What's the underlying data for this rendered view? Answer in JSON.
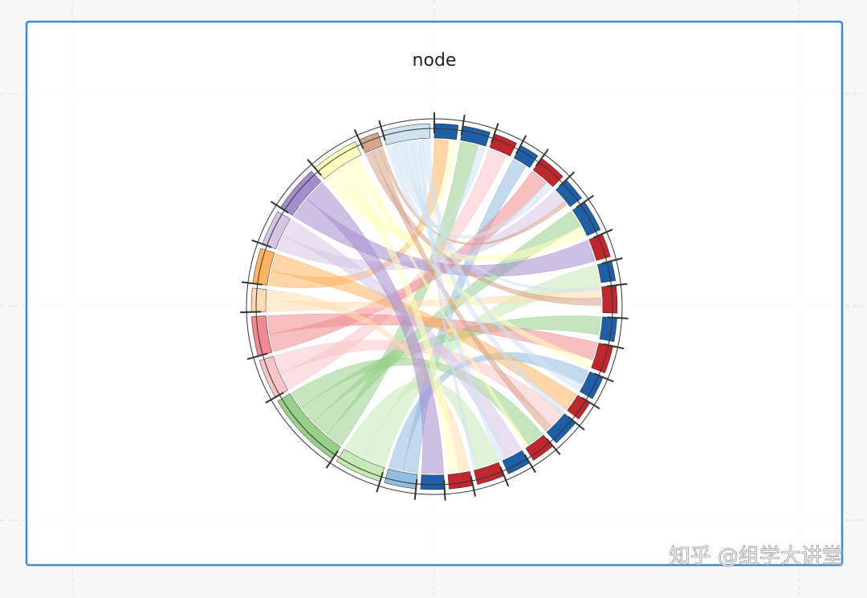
{
  "chart_data": {
    "type": "chord",
    "title": "node",
    "watermark": "知乎 @组学大讲堂",
    "nodes": [
      {
        "color": "#1f5fa6",
        "value": 6
      },
      {
        "color": "#1f5fa6",
        "value": 7
      },
      {
        "color": "#c0272d",
        "value": 6
      },
      {
        "color": "#1f5fa6",
        "value": 5
      },
      {
        "color": "#c0272d",
        "value": 7
      },
      {
        "color": "#1f5fa6",
        "value": 6
      },
      {
        "color": "#1f5fa6",
        "value": 8
      },
      {
        "color": "#c0272d",
        "value": 6
      },
      {
        "color": "#1f5fa6",
        "value": 5
      },
      {
        "color": "#c0272d",
        "value": 7
      },
      {
        "color": "#1f5fa6",
        "value": 6
      },
      {
        "color": "#c0272d",
        "value": 7
      },
      {
        "color": "#1f5fa6",
        "value": 6
      },
      {
        "color": "#c0272d",
        "value": 5
      },
      {
        "color": "#1f5fa6",
        "value": 7
      },
      {
        "color": "#c0272d",
        "value": 6
      },
      {
        "color": "#1f5fa6",
        "value": 6
      },
      {
        "color": "#c0272d",
        "value": 7
      },
      {
        "color": "#c0272d",
        "value": 6
      },
      {
        "color": "#1f5fa6",
        "value": 6
      },
      {
        "color": "#92bce0",
        "value": 8
      },
      {
        "color": "#c7e9b4",
        "value": 12
      },
      {
        "color": "#98d08a",
        "value": 20
      },
      {
        "color": "#f7c5c8",
        "value": 10
      },
      {
        "color": "#f08a90",
        "value": 10
      },
      {
        "color": "#ffdcb0",
        "value": 6
      },
      {
        "color": "#fdb462",
        "value": 9
      },
      {
        "color": "#d5c5e5",
        "value": 9
      },
      {
        "color": "#a58ccd",
        "value": 12
      },
      {
        "color": "#ffffbf",
        "value": 12
      },
      {
        "color": "#d6a488",
        "value": 5
      },
      {
        "color": "#cfe2f0",
        "value": 12
      }
    ],
    "links": [
      {
        "source": 20,
        "target": 3,
        "value": 4
      },
      {
        "source": 20,
        "target": 12,
        "value": 4
      },
      {
        "source": 21,
        "target": 8,
        "value": 6
      },
      {
        "source": 21,
        "target": 17,
        "value": 6
      },
      {
        "source": 22,
        "target": 1,
        "value": 5
      },
      {
        "source": 22,
        "target": 6,
        "value": 5
      },
      {
        "source": 22,
        "target": 10,
        "value": 5
      },
      {
        "source": 22,
        "target": 15,
        "value": 5
      },
      {
        "source": 23,
        "target": 2,
        "value": 5
      },
      {
        "source": 23,
        "target": 14,
        "value": 5
      },
      {
        "source": 24,
        "target": 4,
        "value": 5
      },
      {
        "source": 24,
        "target": 11,
        "value": 5
      },
      {
        "source": 25,
        "target": 9,
        "value": 3
      },
      {
        "source": 25,
        "target": 18,
        "value": 3
      },
      {
        "source": 26,
        "target": 0,
        "value": 4
      },
      {
        "source": 26,
        "target": 13,
        "value": 5
      },
      {
        "source": 27,
        "target": 5,
        "value": 4
      },
      {
        "source": 27,
        "target": 16,
        "value": 5
      },
      {
        "source": 28,
        "target": 7,
        "value": 6
      },
      {
        "source": 28,
        "target": 19,
        "value": 6
      },
      {
        "source": 29,
        "target": 0,
        "value": 2
      },
      {
        "source": 29,
        "target": 6,
        "value": 3
      },
      {
        "source": 29,
        "target": 18,
        "value": 3
      },
      {
        "source": 29,
        "target": 11,
        "value": 2
      },
      {
        "source": 29,
        "target": 15,
        "value": 1
      },
      {
        "source": 30,
        "target": 9,
        "value": 2
      },
      {
        "source": 30,
        "target": 14,
        "value": 2
      },
      {
        "source": 30,
        "target": 5,
        "value": 1
      },
      {
        "source": 31,
        "target": 1,
        "value": 2
      },
      {
        "source": 31,
        "target": 4,
        "value": 2
      },
      {
        "source": 31,
        "target": 8,
        "value": 1
      },
      {
        "source": 31,
        "target": 13,
        "value": 2
      },
      {
        "source": 31,
        "target": 16,
        "value": 2
      },
      {
        "source": 31,
        "target": 17,
        "value": 1
      },
      {
        "source": 31,
        "target": 12,
        "value": 2
      }
    ]
  }
}
